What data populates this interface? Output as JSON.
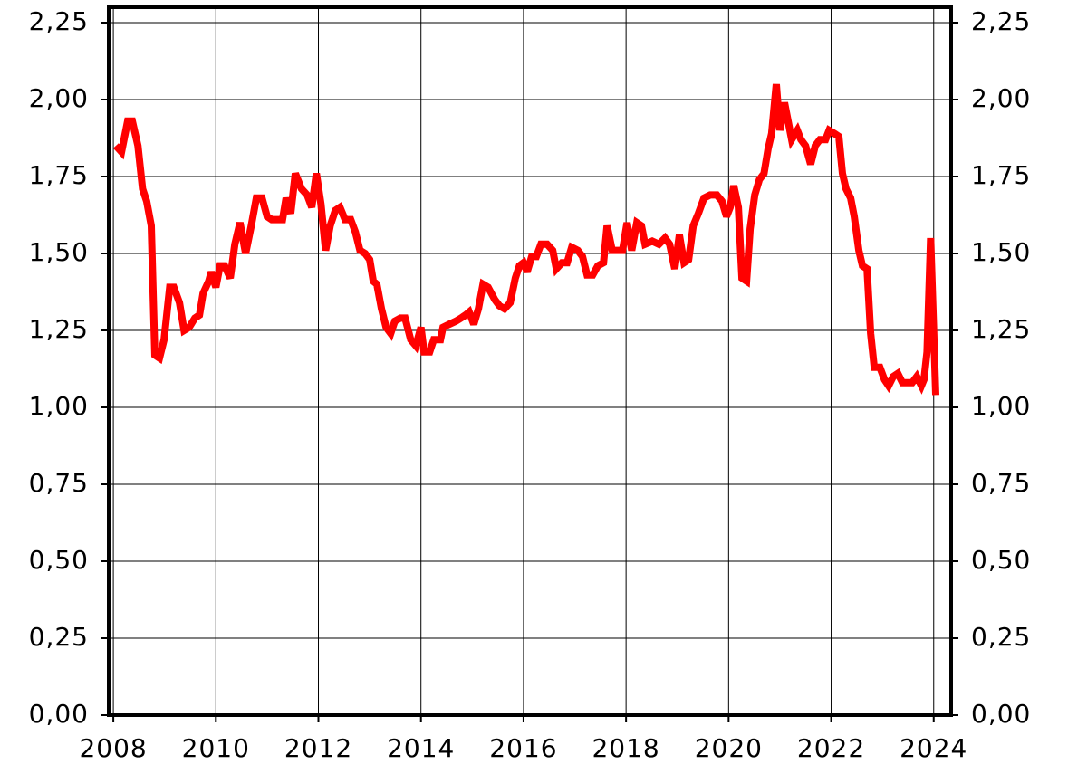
{
  "chart_data": {
    "type": "line",
    "x": [
      2008.05,
      2008.16,
      2008.28,
      2008.37,
      2008.48,
      2008.57,
      2008.65,
      2008.74,
      2008.81,
      2008.9,
      2008.99,
      2009.1,
      2009.18,
      2009.29,
      2009.38,
      2009.48,
      2009.59,
      2009.68,
      2009.75,
      2009.86,
      2009.91,
      2010.0,
      2010.08,
      2010.17,
      2010.28,
      2010.37,
      2010.47,
      2010.58,
      2010.69,
      2010.79,
      2010.9,
      2011.0,
      2011.09,
      2011.22,
      2011.3,
      2011.37,
      2011.46,
      2011.55,
      2011.67,
      2011.78,
      2011.87,
      2011.96,
      2012.05,
      2012.14,
      2012.23,
      2012.33,
      2012.42,
      2012.52,
      2012.63,
      2012.72,
      2012.81,
      2012.91,
      2013.0,
      2013.07,
      2013.14,
      2013.23,
      2013.32,
      2013.41,
      2013.49,
      2013.6,
      2013.69,
      2013.8,
      2013.9,
      2014.0,
      2014.06,
      2014.17,
      2014.25,
      2014.38,
      2014.43,
      2014.55,
      2014.68,
      2014.78,
      2014.87,
      2014.94,
      2015.03,
      2015.12,
      2015.21,
      2015.31,
      2015.44,
      2015.53,
      2015.63,
      2015.74,
      2015.84,
      2015.92,
      2016.0,
      2016.07,
      2016.16,
      2016.25,
      2016.34,
      2016.46,
      2016.57,
      2016.64,
      2016.75,
      2016.85,
      2016.94,
      2017.06,
      2017.15,
      2017.24,
      2017.35,
      2017.45,
      2017.56,
      2017.63,
      2017.73,
      2017.84,
      2017.93,
      2018.02,
      2018.11,
      2018.21,
      2018.3,
      2018.37,
      2018.51,
      2018.64,
      2018.76,
      2018.85,
      2018.95,
      2019.04,
      2019.13,
      2019.22,
      2019.31,
      2019.41,
      2019.52,
      2019.64,
      2019.77,
      2019.87,
      2019.96,
      2020.03,
      2020.1,
      2020.19,
      2020.26,
      2020.35,
      2020.42,
      2020.51,
      2020.6,
      2020.69,
      2020.77,
      2020.84,
      2020.93,
      2021.0,
      2021.09,
      2021.16,
      2021.23,
      2021.34,
      2021.41,
      2021.5,
      2021.6,
      2021.69,
      2021.78,
      2021.89,
      2021.96,
      2022.06,
      2022.15,
      2022.22,
      2022.29,
      2022.38,
      2022.45,
      2022.54,
      2022.61,
      2022.7,
      2022.77,
      2022.84,
      2022.95,
      2023.04,
      2023.12,
      2023.21,
      2023.3,
      2023.39,
      2023.49,
      2023.58,
      2023.67,
      2023.76,
      2023.81,
      2023.87,
      2023.94,
      2024.04
    ],
    "series": [
      {
        "color": "#ff0000",
        "values": [
          1.85,
          1.83,
          1.93,
          1.93,
          1.85,
          1.71,
          1.67,
          1.59,
          1.17,
          1.16,
          1.22,
          1.39,
          1.39,
          1.34,
          1.25,
          1.26,
          1.29,
          1.3,
          1.37,
          1.41,
          1.44,
          1.39,
          1.46,
          1.46,
          1.42,
          1.53,
          1.6,
          1.5,
          1.59,
          1.68,
          1.68,
          1.62,
          1.61,
          1.61,
          1.61,
          1.68,
          1.63,
          1.76,
          1.71,
          1.69,
          1.65,
          1.76,
          1.66,
          1.51,
          1.59,
          1.64,
          1.65,
          1.61,
          1.61,
          1.57,
          1.51,
          1.5,
          1.48,
          1.41,
          1.4,
          1.32,
          1.26,
          1.24,
          1.28,
          1.29,
          1.29,
          1.22,
          1.2,
          1.26,
          1.18,
          1.18,
          1.22,
          1.22,
          1.26,
          1.27,
          1.28,
          1.29,
          1.3,
          1.31,
          1.27,
          1.32,
          1.4,
          1.39,
          1.35,
          1.33,
          1.32,
          1.34,
          1.42,
          1.46,
          1.47,
          1.44,
          1.49,
          1.49,
          1.53,
          1.53,
          1.51,
          1.45,
          1.47,
          1.47,
          1.52,
          1.51,
          1.49,
          1.43,
          1.43,
          1.46,
          1.47,
          1.59,
          1.51,
          1.51,
          1.51,
          1.6,
          1.51,
          1.6,
          1.59,
          1.53,
          1.54,
          1.53,
          1.55,
          1.53,
          1.45,
          1.56,
          1.47,
          1.48,
          1.59,
          1.63,
          1.68,
          1.69,
          1.69,
          1.67,
          1.62,
          1.65,
          1.72,
          1.65,
          1.42,
          1.41,
          1.58,
          1.69,
          1.74,
          1.76,
          1.84,
          1.89,
          2.05,
          1.9,
          1.99,
          1.93,
          1.87,
          1.9,
          1.87,
          1.85,
          1.79,
          1.85,
          1.87,
          1.87,
          1.9,
          1.89,
          1.88,
          1.76,
          1.71,
          1.68,
          1.62,
          1.51,
          1.46,
          1.45,
          1.24,
          1.13,
          1.13,
          1.09,
          1.07,
          1.1,
          1.11,
          1.08,
          1.08,
          1.08,
          1.1,
          1.07,
          1.09,
          1.18,
          1.55,
          1.04
        ]
      }
    ],
    "xlim": [
      2007.91,
      2024.34
    ],
    "xticks": [
      2008,
      2010,
      2012,
      2014,
      2016,
      2018,
      2020,
      2022,
      2024
    ],
    "ylim": [
      0,
      2.3
    ],
    "yticks": [
      {
        "value": 0,
        "label": "0,00"
      },
      {
        "value": 0.25,
        "label": "0,25"
      },
      {
        "value": 0.5,
        "label": "0,50"
      },
      {
        "value": 0.75,
        "label": "0,75"
      },
      {
        "value": 1,
        "label": "1,00"
      },
      {
        "value": 1.25,
        "label": "1,25"
      },
      {
        "value": 1.5,
        "label": "1,50"
      },
      {
        "value": 1.75,
        "label": "1,75"
      },
      {
        "value": 2,
        "label": "2,00"
      },
      {
        "value": 2.25,
        "label": "2,25"
      }
    ],
    "y2lim": [
      0,
      2.3
    ],
    "y2ticks": [
      {
        "value": 0,
        "label": "0,00"
      },
      {
        "value": 0.25,
        "label": "0,25"
      },
      {
        "value": 0.5,
        "label": "0,50"
      },
      {
        "value": 0.75,
        "label": "0,75"
      },
      {
        "value": 1,
        "label": "1,00"
      },
      {
        "value": 1.25,
        "label": "1,25"
      },
      {
        "value": 1.5,
        "label": "1,50"
      },
      {
        "value": 1.75,
        "label": "1,75"
      },
      {
        "value": 2,
        "label": "2,00"
      },
      {
        "value": 2.25,
        "label": "2,25"
      }
    ],
    "grid": true
  }
}
